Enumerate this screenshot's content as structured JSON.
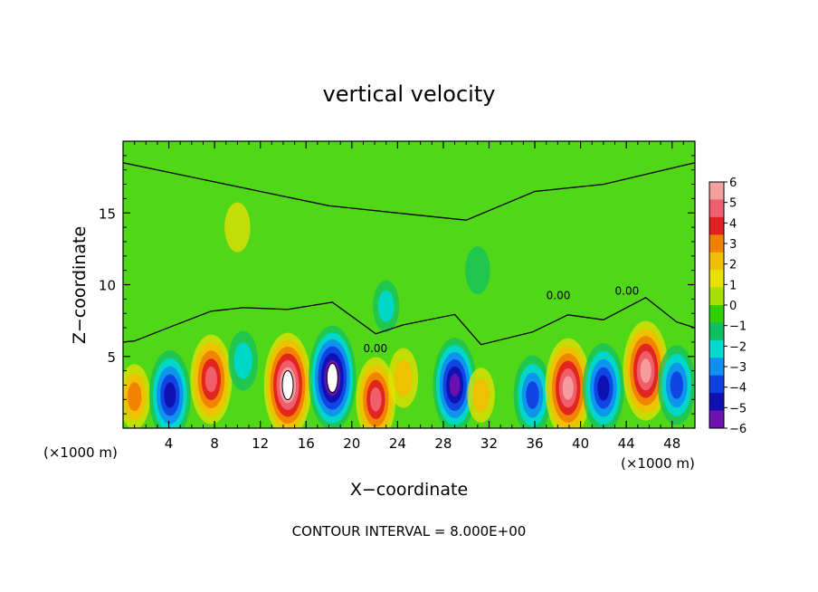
{
  "chart_data": {
    "type": "heatmap",
    "title": "vertical velocity",
    "xlabel": "X−coordinate",
    "ylabel": "Z−coordinate",
    "x_unit_label": "(×1000 m)",
    "footer": "CONTOUR INTERVAL = 8.000E+00",
    "xlim": [
      0,
      50
    ],
    "ylim": [
      0,
      20
    ],
    "x_ticks": [
      "4",
      "8",
      "12",
      "16",
      "20",
      "24",
      "28",
      "32",
      "36",
      "40",
      "44",
      "48"
    ],
    "x_tick_values": [
      4,
      8,
      12,
      16,
      20,
      24,
      28,
      32,
      36,
      40,
      44,
      48
    ],
    "y_ticks": [
      "5",
      "10",
      "15"
    ],
    "y_tick_values": [
      5,
      10,
      15
    ],
    "contour_label": "0.00",
    "colorbar": {
      "labels": [
        "6",
        "5",
        "4",
        "3",
        "2",
        "1",
        "0",
        "−1",
        "−2",
        "−3",
        "−4",
        "−5",
        "−6"
      ],
      "colors": [
        "#f4a0a0",
        "#f06070",
        "#e02020",
        "#f08000",
        "#f0c000",
        "#e8e000",
        "#a8e000",
        "#30d000",
        "#10c060",
        "#00d8d0",
        "#1090f0",
        "#1040e0",
        "#1010b0",
        "#7010b0"
      ],
      "range": [
        -6,
        6
      ]
    },
    "field_features": [
      {
        "x": 1,
        "z": 2.2,
        "w": 2.5
      },
      {
        "x": 4.1,
        "z": 2.3,
        "w": -5
      },
      {
        "x": 7.7,
        "z": 3.4,
        "w": 5
      },
      {
        "x": 10.5,
        "z": 4.7,
        "w": -2
      },
      {
        "x": 14.4,
        "z": 3.0,
        "w": 6.5
      },
      {
        "x": 18.3,
        "z": 3.5,
        "w": -6.5
      },
      {
        "x": 22.1,
        "z": 2.0,
        "w": 4.5
      },
      {
        "x": 24.5,
        "z": 3.5,
        "w": 2
      },
      {
        "x": 29.0,
        "z": 3.0,
        "w": -5.5
      },
      {
        "x": 31.3,
        "z": 2.3,
        "w": 1.5
      },
      {
        "x": 35.8,
        "z": 2.3,
        "w": -4
      },
      {
        "x": 38.9,
        "z": 2.8,
        "w": 6
      },
      {
        "x": 42.0,
        "z": 2.8,
        "w": -5
      },
      {
        "x": 45.7,
        "z": 4.0,
        "w": 6
      },
      {
        "x": 48.4,
        "z": 3.0,
        "w": -4
      },
      {
        "x": 23.0,
        "z": 8.5,
        "w": -1.2
      },
      {
        "x": 31.0,
        "z": 11.0,
        "w": -0.8
      },
      {
        "x": 10.0,
        "z": 14.0,
        "w": 1.0
      }
    ]
  }
}
